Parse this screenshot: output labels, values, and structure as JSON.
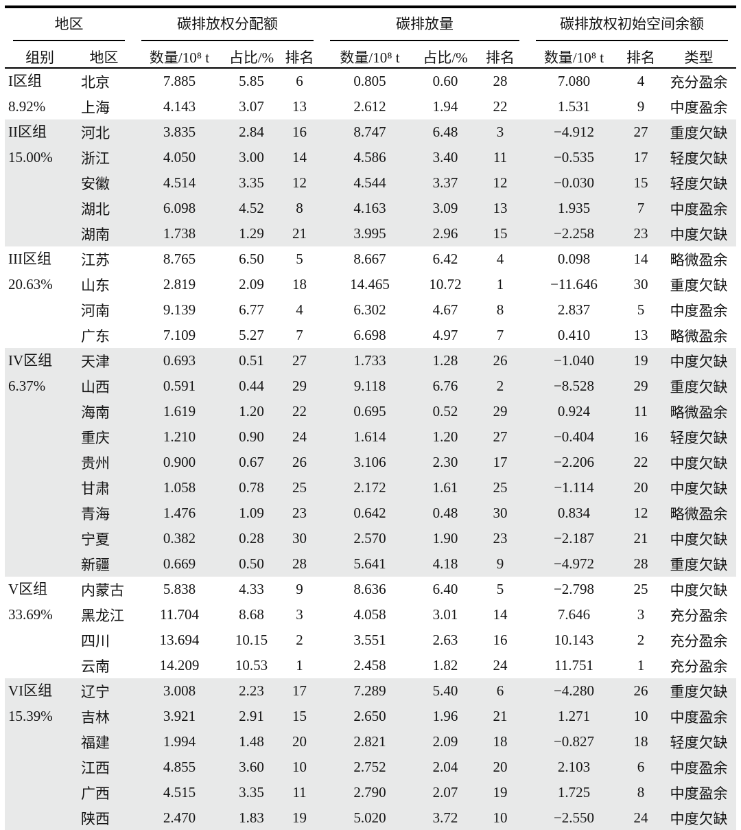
{
  "table": {
    "top_headers": {
      "region": "地区",
      "alloc": "碳排放权分配额",
      "emission": "碳排放量",
      "balance": "碳排放权初始空间余额"
    },
    "sub_headers": [
      "组别",
      "地区",
      "数量/10⁸ t",
      "占比/%",
      "排名",
      "数量/10⁸ t",
      "占比/%",
      "排名",
      "数量/10⁸ t",
      "排名",
      "类型"
    ],
    "groups": [
      {
        "name": "I区组",
        "share": "8.92%",
        "shaded": false,
        "rows": [
          {
            "region": "北京",
            "cells": [
              "7.885",
              "5.85",
              "6",
              "0.805",
              "0.60",
              "28",
              "7.080",
              "4",
              "充分盈余"
            ]
          },
          {
            "region": "上海",
            "cells": [
              "4.143",
              "3.07",
              "13",
              "2.612",
              "1.94",
              "22",
              "1.531",
              "9",
              "中度盈余"
            ]
          }
        ]
      },
      {
        "name": "II区组",
        "share": "15.00%",
        "shaded": true,
        "rows": [
          {
            "region": "河北",
            "cells": [
              "3.835",
              "2.84",
              "16",
              "8.747",
              "6.48",
              "3",
              "−4.912",
              "27",
              "重度欠缺"
            ]
          },
          {
            "region": "浙江",
            "cells": [
              "4.050",
              "3.00",
              "14",
              "4.586",
              "3.40",
              "11",
              "−0.535",
              "17",
              "轻度欠缺"
            ]
          },
          {
            "region": "安徽",
            "cells": [
              "4.514",
              "3.35",
              "12",
              "4.544",
              "3.37",
              "12",
              "−0.030",
              "15",
              "轻度欠缺"
            ]
          },
          {
            "region": "湖北",
            "cells": [
              "6.098",
              "4.52",
              "8",
              "4.163",
              "3.09",
              "13",
              "1.935",
              "7",
              "中度盈余"
            ]
          },
          {
            "region": "湖南",
            "cells": [
              "1.738",
              "1.29",
              "21",
              "3.995",
              "2.96",
              "15",
              "−2.258",
              "23",
              "中度欠缺"
            ]
          }
        ]
      },
      {
        "name": "III区组",
        "share": "20.63%",
        "shaded": false,
        "rows": [
          {
            "region": "江苏",
            "cells": [
              "8.765",
              "6.50",
              "5",
              "8.667",
              "6.42",
              "4",
              "0.098",
              "14",
              "略微盈余"
            ]
          },
          {
            "region": "山东",
            "cells": [
              "2.819",
              "2.09",
              "18",
              "14.465",
              "10.72",
              "1",
              "−11.646",
              "30",
              "重度欠缺"
            ]
          },
          {
            "region": "河南",
            "cells": [
              "9.139",
              "6.77",
              "4",
              "6.302",
              "4.67",
              "8",
              "2.837",
              "5",
              "中度盈余"
            ]
          },
          {
            "region": "广东",
            "cells": [
              "7.109",
              "5.27",
              "7",
              "6.698",
              "4.97",
              "7",
              "0.410",
              "13",
              "略微盈余"
            ]
          }
        ]
      },
      {
        "name": "IV区组",
        "share": "6.37%",
        "shaded": true,
        "rows": [
          {
            "region": "天津",
            "cells": [
              "0.693",
              "0.51",
              "27",
              "1.733",
              "1.28",
              "26",
              "−1.040",
              "19",
              "中度欠缺"
            ]
          },
          {
            "region": "山西",
            "cells": [
              "0.591",
              "0.44",
              "29",
              "9.118",
              "6.76",
              "2",
              "−8.528",
              "29",
              "重度欠缺"
            ]
          },
          {
            "region": "海南",
            "cells": [
              "1.619",
              "1.20",
              "22",
              "0.695",
              "0.52",
              "29",
              "0.924",
              "11",
              "略微盈余"
            ]
          },
          {
            "region": "重庆",
            "cells": [
              "1.210",
              "0.90",
              "24",
              "1.614",
              "1.20",
              "27",
              "−0.404",
              "16",
              "轻度欠缺"
            ]
          },
          {
            "region": "贵州",
            "cells": [
              "0.900",
              "0.67",
              "26",
              "3.106",
              "2.30",
              "17",
              "−2.206",
              "22",
              "中度欠缺"
            ]
          },
          {
            "region": "甘肃",
            "cells": [
              "1.058",
              "0.78",
              "25",
              "2.172",
              "1.61",
              "25",
              "−1.114",
              "20",
              "中度欠缺"
            ]
          },
          {
            "region": "青海",
            "cells": [
              "1.476",
              "1.09",
              "23",
              "0.642",
              "0.48",
              "30",
              "0.834",
              "12",
              "略微盈余"
            ]
          },
          {
            "region": "宁夏",
            "cells": [
              "0.382",
              "0.28",
              "30",
              "2.570",
              "1.90",
              "23",
              "−2.187",
              "21",
              "中度欠缺"
            ]
          },
          {
            "region": "新疆",
            "cells": [
              "0.669",
              "0.50",
              "28",
              "5.641",
              "4.18",
              "9",
              "−4.972",
              "28",
              "重度欠缺"
            ]
          }
        ]
      },
      {
        "name": "V区组",
        "share": "33.69%",
        "shaded": false,
        "rows": [
          {
            "region": "内蒙古",
            "cells": [
              "5.838",
              "4.33",
              "9",
              "8.636",
              "6.40",
              "5",
              "−2.798",
              "25",
              "中度欠缺"
            ]
          },
          {
            "region": "黑龙江",
            "cells": [
              "11.704",
              "8.68",
              "3",
              "4.058",
              "3.01",
              "14",
              "7.646",
              "3",
              "充分盈余"
            ]
          },
          {
            "region": "四川",
            "cells": [
              "13.694",
              "10.15",
              "2",
              "3.551",
              "2.63",
              "16",
              "10.143",
              "2",
              "充分盈余"
            ]
          },
          {
            "region": "云南",
            "cells": [
              "14.209",
              "10.53",
              "1",
              "2.458",
              "1.82",
              "24",
              "11.751",
              "1",
              "充分盈余"
            ]
          }
        ]
      },
      {
        "name": "VI区组",
        "share": "15.39%",
        "shaded": true,
        "rows": [
          {
            "region": "辽宁",
            "cells": [
              "3.008",
              "2.23",
              "17",
              "7.289",
              "5.40",
              "6",
              "−4.280",
              "26",
              "重度欠缺"
            ]
          },
          {
            "region": "吉林",
            "cells": [
              "3.921",
              "2.91",
              "15",
              "2.650",
              "1.96",
              "21",
              "1.271",
              "10",
              "中度盈余"
            ]
          },
          {
            "region": "福建",
            "cells": [
              "1.994",
              "1.48",
              "20",
              "2.821",
              "2.09",
              "18",
              "−0.827",
              "18",
              "轻度欠缺"
            ]
          },
          {
            "region": "江西",
            "cells": [
              "4.855",
              "3.60",
              "10",
              "2.752",
              "2.04",
              "20",
              "2.103",
              "6",
              "中度盈余"
            ]
          },
          {
            "region": "广西",
            "cells": [
              "4.515",
              "3.35",
              "11",
              "2.790",
              "2.07",
              "19",
              "1.725",
              "8",
              "中度盈余"
            ]
          },
          {
            "region": "陕西",
            "cells": [
              "2.470",
              "1.83",
              "19",
              "5.020",
              "3.72",
              "10",
              "−2.550",
              "24",
              "中度欠缺"
            ]
          }
        ]
      }
    ]
  },
  "colors": {
    "shaded_row_bg": "#e8e9e9",
    "rule_color": "#000000",
    "text_color": "#141414"
  }
}
